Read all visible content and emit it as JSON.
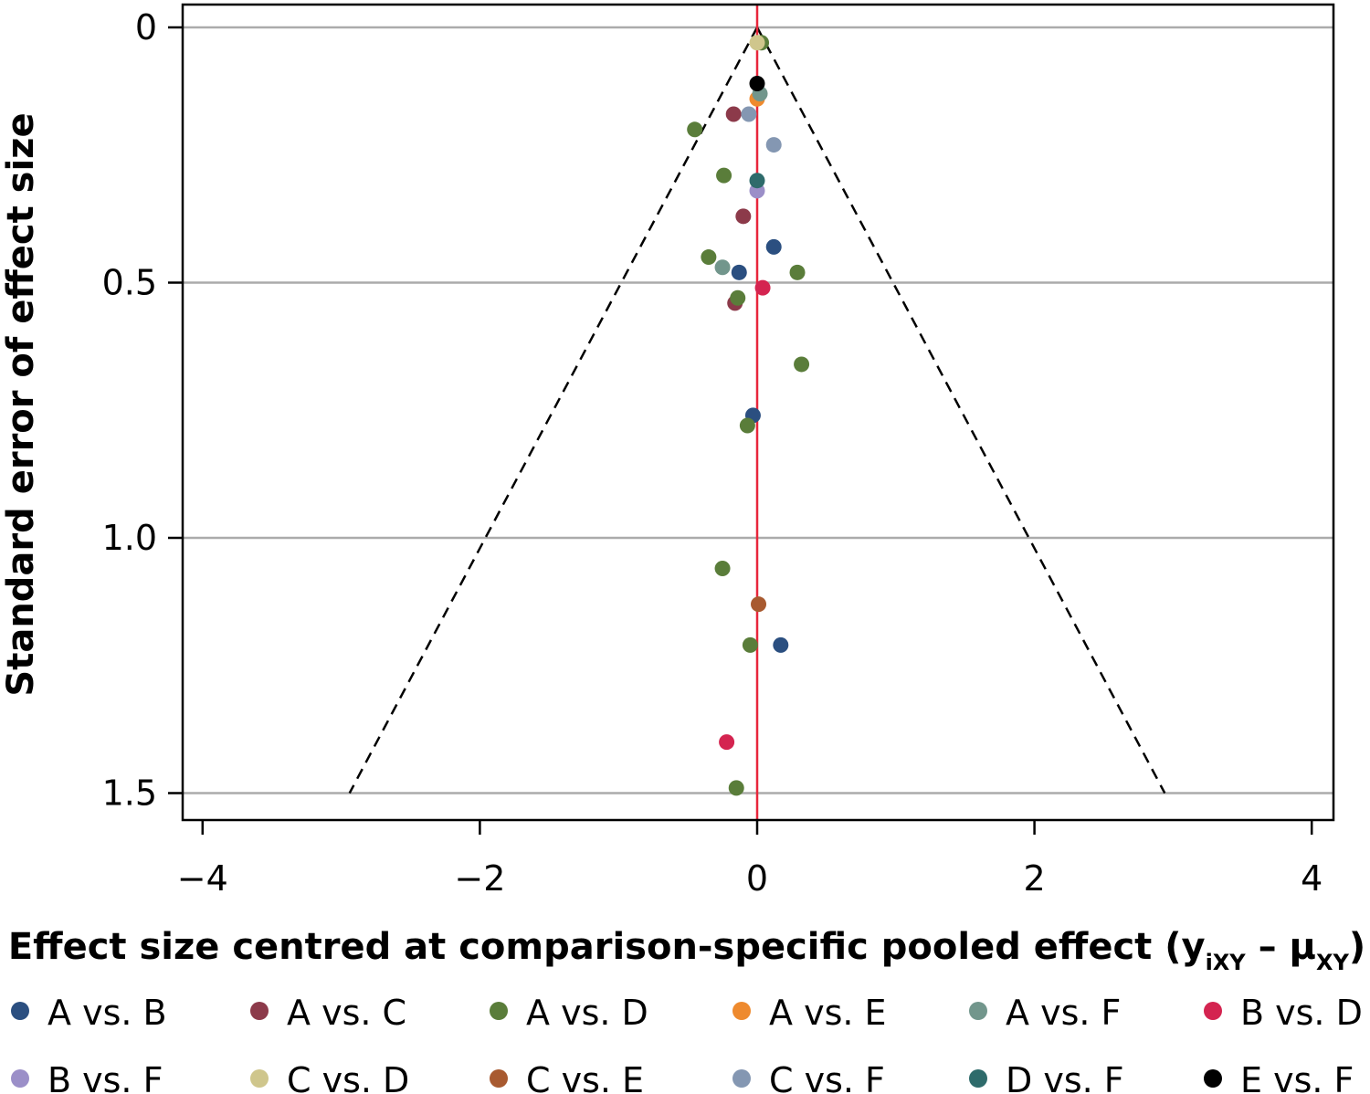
{
  "chart_data": {
    "type": "scatter",
    "title": "",
    "xlabel": "Effect size centred at comparison-specific pooled effect (y",
    "xlabel_sub1": "iXY",
    "xlabel_mid": " – μ",
    "xlabel_sub2": "XY",
    "xlabel_end": ")",
    "ylabel": "Standard error of effect size",
    "xlim": [
      -4.2,
      4.2
    ],
    "ylim": [
      1.56,
      -0.05
    ],
    "y_reversed": true,
    "xticks": [
      -4,
      -2,
      0,
      2,
      4
    ],
    "xtick_labels": [
      "−4",
      "−2",
      "0",
      "2",
      "4"
    ],
    "yticks": [
      0,
      0.5,
      1.0,
      1.5
    ],
    "ytick_labels": [
      "0",
      "0.5",
      "1.0",
      "1.5"
    ],
    "grid": "horizontal",
    "reference_line": {
      "x": 0,
      "color": "#e8263b"
    },
    "funnel": {
      "apex": [
        0,
        0
      ],
      "base_y": 1.5,
      "half_width_at_base": 2.94,
      "style": "dashed",
      "color": "#000000"
    },
    "legend_position": "bottom",
    "series": [
      {
        "name": "A vs. B",
        "color": "#2b4f80",
        "points": [
          [
            0.12,
            0.43
          ],
          [
            -0.13,
            0.48
          ],
          [
            -0.03,
            0.76
          ],
          [
            0.17,
            1.21
          ]
        ]
      },
      {
        "name": "A vs. C",
        "color": "#8c3a4a",
        "points": [
          [
            -0.17,
            0.17
          ],
          [
            -0.1,
            0.37
          ],
          [
            -0.16,
            0.54
          ]
        ]
      },
      {
        "name": "A vs. D",
        "color": "#5a7d3a",
        "points": [
          [
            -0.45,
            0.2
          ],
          [
            -0.24,
            0.29
          ],
          [
            -0.35,
            0.45
          ],
          [
            0.29,
            0.48
          ],
          [
            -0.14,
            0.53
          ],
          [
            0.32,
            0.66
          ],
          [
            -0.07,
            0.78
          ],
          [
            -0.25,
            1.06
          ],
          [
            -0.05,
            1.21
          ],
          [
            -0.15,
            1.49
          ],
          [
            0.03,
            0.03
          ]
        ]
      },
      {
        "name": "A vs. E",
        "color": "#ee8a2e",
        "points": [
          [
            0.0,
            0.14
          ]
        ]
      },
      {
        "name": "A vs. F",
        "color": "#72968c",
        "points": [
          [
            0.02,
            0.13
          ],
          [
            -0.25,
            0.47
          ]
        ]
      },
      {
        "name": "B vs. D",
        "color": "#d42450",
        "points": [
          [
            0.04,
            0.51
          ],
          [
            -0.22,
            1.4
          ]
        ]
      },
      {
        "name": "B vs. F",
        "color": "#9b8fc8",
        "points": [
          [
            0.0,
            0.32
          ]
        ]
      },
      {
        "name": "C vs. D",
        "color": "#cfc68c",
        "points": [
          [
            0.0,
            0.03
          ]
        ]
      },
      {
        "name": "C vs. E",
        "color": "#a85a30",
        "points": [
          [
            0.01,
            1.13
          ]
        ]
      },
      {
        "name": "C vs. F",
        "color": "#8497b2",
        "points": [
          [
            -0.06,
            0.17
          ],
          [
            0.12,
            0.23
          ]
        ]
      },
      {
        "name": "D vs. F",
        "color": "#2e6b6b",
        "points": [
          [
            0.0,
            0.3
          ]
        ]
      },
      {
        "name": "E vs. F",
        "color": "#000000",
        "points": [
          [
            0.0,
            0.11
          ]
        ]
      }
    ]
  }
}
